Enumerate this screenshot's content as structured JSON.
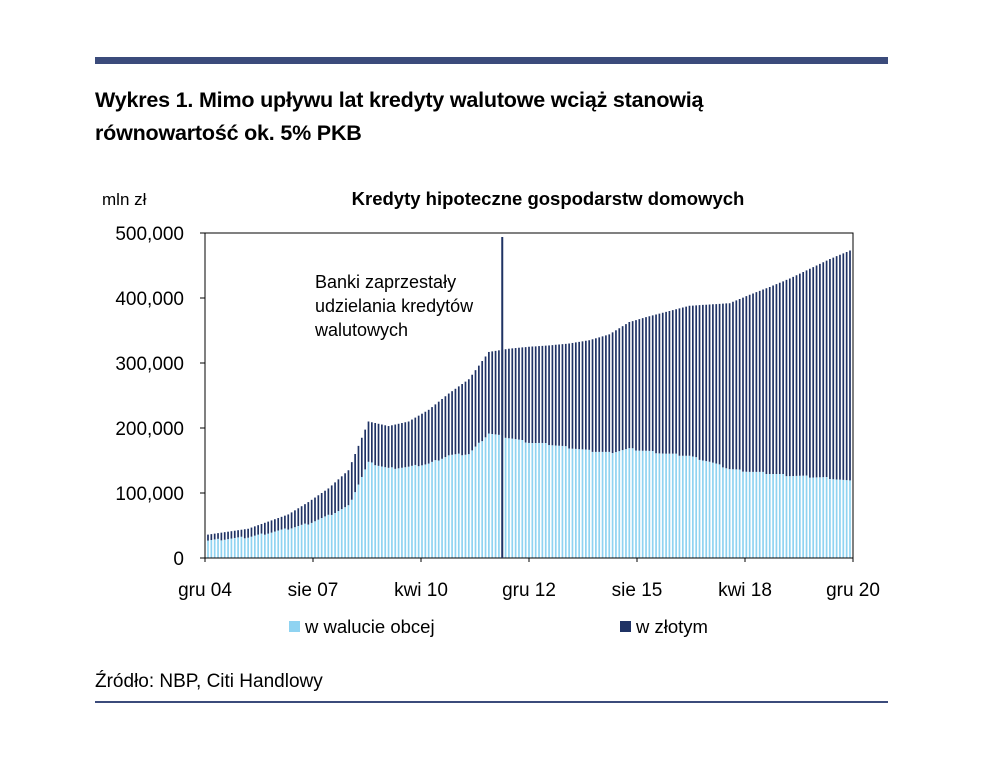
{
  "figure": {
    "heading_line1": "Wykres 1. Mimo upływu lat kredyty walutowe wciąż stanowią",
    "heading_line2": "równowartość ok. 5% PKB",
    "source": "Źródło: NBP, Citi Handlowy"
  },
  "chart_data": {
    "type": "bar",
    "stacked": true,
    "title": "Kredyty hipoteczne gospodarstw domowych",
    "ylabel": "mln zł",
    "ylim": [
      0,
      500000
    ],
    "yticks": [
      0,
      100000,
      200000,
      300000,
      400000,
      500000
    ],
    "ytick_labels": [
      "0",
      "100,000",
      "200,000",
      "300,000",
      "400,000",
      "500,000"
    ],
    "x_start": "2004-12",
    "x_end": "2020-12",
    "xtick_labels": [
      "gru 04",
      "sie 07",
      "kwi 10",
      "gru 12",
      "sie 15",
      "kwi 18",
      "gru 20"
    ],
    "legend_position": "bottom",
    "annotation": {
      "lines": [
        "Banki zaprzestały",
        "udzielania kredytów",
        "walutowych"
      ],
      "x": "2012-04"
    },
    "series": [
      {
        "name": "w walucie obcej",
        "color": "#8fd3f1",
        "points": [
          [
            "2004-12",
            27000
          ],
          [
            "2005-12",
            32000
          ],
          [
            "2006-12",
            45000
          ],
          [
            "2007-06",
            53000
          ],
          [
            "2007-12",
            65000
          ],
          [
            "2008-06",
            80000
          ],
          [
            "2008-12",
            147000
          ],
          [
            "2009-06",
            138000
          ],
          [
            "2009-12",
            140000
          ],
          [
            "2010-06",
            145000
          ],
          [
            "2010-12",
            158000
          ],
          [
            "2011-06",
            160000
          ],
          [
            "2011-12",
            192000
          ],
          [
            "2012-06",
            185000
          ],
          [
            "2012-12",
            178000
          ],
          [
            "2013-06",
            175000
          ],
          [
            "2013-12",
            170000
          ],
          [
            "2014-06",
            165000
          ],
          [
            "2014-12",
            162000
          ],
          [
            "2015-06",
            168000
          ],
          [
            "2015-12",
            164000
          ],
          [
            "2016-06",
            160000
          ],
          [
            "2016-12",
            157000
          ],
          [
            "2017-06",
            148000
          ],
          [
            "2017-12",
            137000
          ],
          [
            "2018-06",
            133000
          ],
          [
            "2018-12",
            130000
          ],
          [
            "2019-06",
            127000
          ],
          [
            "2019-12",
            125000
          ],
          [
            "2020-06",
            123000
          ],
          [
            "2020-12",
            118000
          ]
        ]
      },
      {
        "name": "w złotym",
        "color": "#1f3264",
        "points": [
          [
            "2004-12",
            9000
          ],
          [
            "2005-12",
            13000
          ],
          [
            "2006-12",
            22000
          ],
          [
            "2007-06",
            33000
          ],
          [
            "2007-12",
            42000
          ],
          [
            "2008-06",
            55000
          ],
          [
            "2008-12",
            63000
          ],
          [
            "2009-06",
            65000
          ],
          [
            "2009-12",
            70000
          ],
          [
            "2010-06",
            83000
          ],
          [
            "2010-12",
            95000
          ],
          [
            "2011-06",
            115000
          ],
          [
            "2011-12",
            125000
          ],
          [
            "2012-06",
            137000
          ],
          [
            "2012-12",
            147000
          ],
          [
            "2013-06",
            152000
          ],
          [
            "2013-12",
            160000
          ],
          [
            "2014-06",
            170000
          ],
          [
            "2014-12",
            182000
          ],
          [
            "2015-06",
            195000
          ],
          [
            "2015-12",
            208000
          ],
          [
            "2016-06",
            220000
          ],
          [
            "2016-12",
            231000
          ],
          [
            "2017-06",
            242000
          ],
          [
            "2017-12",
            255000
          ],
          [
            "2018-06",
            272000
          ],
          [
            "2018-12",
            287000
          ],
          [
            "2019-06",
            303000
          ],
          [
            "2019-12",
            320000
          ],
          [
            "2020-06",
            337000
          ],
          [
            "2020-12",
            355000
          ]
        ]
      }
    ]
  }
}
